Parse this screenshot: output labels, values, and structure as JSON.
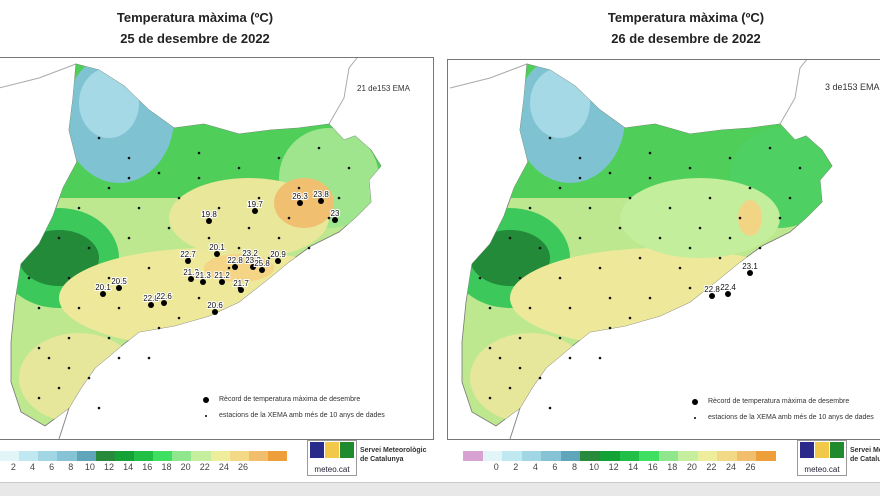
{
  "maps": [
    {
      "title": "Temperatura màxima (ºC)",
      "date": "25 de desembre de 2022",
      "station_count": "21 de153 EMA",
      "records": [
        "19.8",
        "19.7",
        "26.3",
        "23.8",
        "23",
        "20.1",
        "22.7",
        "23.2",
        "22.8",
        "23.3",
        "20.9",
        "25.8",
        "21.3",
        "21.3",
        "21.2",
        "21.7",
        "20.5",
        "20.1",
        "22.8",
        "22.6",
        "20.6"
      ]
    },
    {
      "title": "Temperatura màxima (ºC)",
      "date": "26 de desembre de 2022",
      "station_count": "3 de153 EMA",
      "records": [
        "23.1",
        "22.8",
        "22.4"
      ]
    }
  ],
  "legend": {
    "record": "Rècord de temperatura màxima de desembre",
    "stations": "estacions de la XEMA amb més de 10 anys de dades"
  },
  "colorbar": {
    "left_ticks": [
      "2",
      "4",
      "6",
      "8",
      "10",
      "12",
      "14",
      "16",
      "18",
      "20",
      "22",
      "24",
      "26"
    ],
    "right_ticks": [
      "0",
      "2",
      "4",
      "6",
      "8",
      "10",
      "12",
      "14",
      "16",
      "18",
      "20",
      "22",
      "24",
      "26"
    ],
    "colors": [
      "#d8a2d2",
      "#e2f6f8",
      "#bfe8f0",
      "#a3d6e4",
      "#86c3d6",
      "#5fa6ba",
      "#2a8a3c",
      "#14a136",
      "#22bf47",
      "#3fdf62",
      "#8fe68d",
      "#c5ef9e",
      "#eeed9c",
      "#f3d985",
      "#f1be6c",
      "#ee9f3c"
    ]
  },
  "logo": {
    "text": "meteo.cat",
    "org": "Servei Meteorològic de Catalunya",
    "colors": [
      "#2a2a8a",
      "#f2c84a",
      "#1f8a2e"
    ]
  }
}
